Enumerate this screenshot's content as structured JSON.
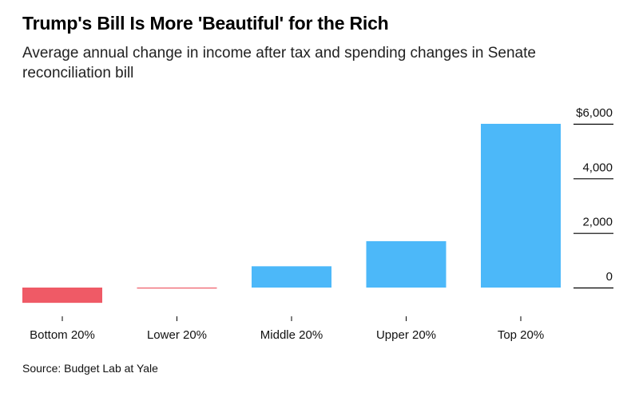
{
  "title": "Trump's Bill Is More 'Beautiful' for the Rich",
  "subtitle": "Average annual change in income after tax and spending changes in Senate reconciliation bill",
  "source": "Source: Budget Lab at Yale",
  "colors": {
    "positive": "#4cb8f9",
    "negative": "#ef5a66",
    "axis": "#000000"
  },
  "chart_data": {
    "type": "bar",
    "categories": [
      "Bottom 20%",
      "Lower 20%",
      "Middle 20%",
      "Upper 20%",
      "Top 20%"
    ],
    "values": [
      -560,
      -30,
      780,
      1700,
      6000
    ],
    "ylim": [
      -600,
      6300
    ],
    "yticks": [
      0,
      2000,
      4000,
      6000
    ],
    "ytick_labels": [
      "0",
      "2,000",
      "4,000",
      "$6,000"
    ],
    "y_axis_position": "right",
    "grid": false
  }
}
